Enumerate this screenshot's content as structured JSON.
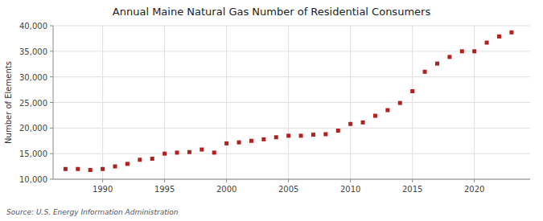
{
  "chart_data": {
    "type": "scatter",
    "title": "Annual Maine Natural Gas Number of Residential Consumers",
    "ylabel": "Number of Elements",
    "annotations": [
      "Source: U.S. Energy Information Administration"
    ],
    "color": "#b22020",
    "marker": "square",
    "grid": true,
    "x": [
      1987,
      1988,
      1989,
      1990,
      1991,
      1992,
      1993,
      1994,
      1995,
      1996,
      1997,
      1998,
      1999,
      2000,
      2001,
      2002,
      2003,
      2004,
      2005,
      2006,
      2007,
      2008,
      2009,
      2010,
      2011,
      2012,
      2013,
      2014,
      2015,
      2016,
      2017,
      2018,
      2019,
      2020,
      2021,
      2022,
      2023
    ],
    "values": [
      12000,
      12000,
      11800,
      12000,
      12500,
      13000,
      13800,
      14000,
      15000,
      15200,
      15300,
      15800,
      15200,
      17000,
      17200,
      17500,
      17800,
      18200,
      18500,
      18500,
      18700,
      18800,
      19500,
      20800,
      21100,
      22400,
      23500,
      24900,
      27200,
      31000,
      32600,
      33900,
      35000,
      35000,
      36700,
      37900,
      38700
    ],
    "xlim": [
      1986.0,
      2024.5
    ],
    "xticks": [
      1990,
      1995,
      2000,
      2005,
      2010,
      2015,
      2020
    ],
    "ylim": [
      10000,
      40000
    ],
    "yticks": [
      {
        "value": 10000,
        "label": "10,000"
      },
      {
        "value": 15000,
        "label": "15,000"
      },
      {
        "value": 20000,
        "label": "20,000"
      },
      {
        "value": 25000,
        "label": "25,000"
      },
      {
        "value": 30000,
        "label": "30,000"
      },
      {
        "value": 35000,
        "label": "35,000"
      },
      {
        "value": 40000,
        "label": "40,000"
      }
    ]
  }
}
